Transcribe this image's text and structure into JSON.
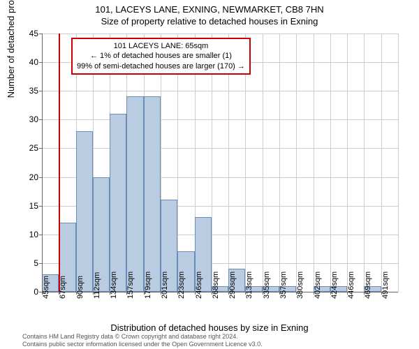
{
  "chart": {
    "type": "histogram",
    "title_line1": "101, LACEYS LANE, EXNING, NEWMARKET, CB8 7HN",
    "title_line2": "Size of property relative to detached houses in Exning",
    "ylabel": "Number of detached properties",
    "xlabel": "Distribution of detached houses by size in Exning",
    "background_color": "#ffffff",
    "grid_color": "#cccccc",
    "axis_color": "#666666",
    "bar_fill": "#b9cce2",
    "bar_border": "#6a8db8",
    "marker_color": "#cc0000",
    "ylim": [
      0,
      45
    ],
    "ytick_step": 5,
    "yticks": [
      0,
      5,
      10,
      15,
      20,
      25,
      30,
      35,
      40,
      45
    ],
    "xtick_labels": [
      "45sqm",
      "67sqm",
      "90sqm",
      "112sqm",
      "134sqm",
      "157sqm",
      "179sqm",
      "201sqm",
      "223sqm",
      "246sqm",
      "268sqm",
      "290sqm",
      "313sqm",
      "335sqm",
      "357sqm",
      "380sqm",
      "402sqm",
      "424sqm",
      "446sqm",
      "469sqm",
      "491sqm"
    ],
    "values": [
      3,
      12,
      28,
      20,
      31,
      34,
      34,
      16,
      7,
      13,
      1,
      4,
      1,
      1,
      1,
      0,
      1,
      1,
      0,
      1,
      0
    ],
    "marker_index": 1,
    "info_box": {
      "line1": "101 LACEYS LANE: 65sqm",
      "line2": "← 1% of detached houses are smaller (1)",
      "line3": "99% of semi-detached houses are larger (170) →",
      "border_color": "#cc0000",
      "fontsize": 11
    },
    "title_fontsize": 13,
    "label_fontsize": 13,
    "tick_fontsize": 12,
    "xtick_fontsize": 11
  },
  "footer": {
    "line1": "Contains HM Land Registry data © Crown copyright and database right 2024.",
    "line2": "Contains public sector information licensed under the Open Government Licence v3.0.",
    "color": "#555555",
    "fontsize": 9
  }
}
